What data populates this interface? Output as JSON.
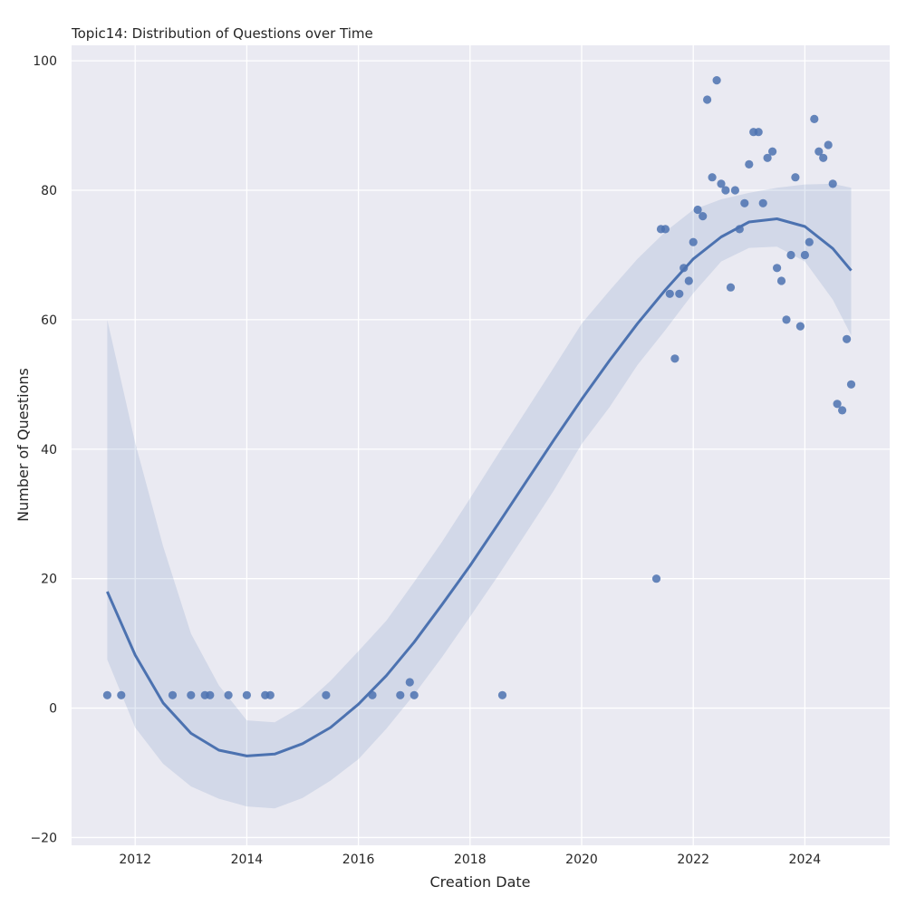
{
  "chart_data": {
    "type": "scatter",
    "title": "Topic14: Distribution of Questions over Time",
    "xlabel": "Creation Date",
    "ylabel": "Number of Questions",
    "xlim": [
      2010.86,
      2025.52
    ],
    "ylim": [
      -21.2,
      102.4
    ],
    "xticks": [
      2012,
      2014,
      2016,
      2018,
      2020,
      2022,
      2024
    ],
    "yticks": [
      -20,
      0,
      20,
      40,
      60,
      80,
      100
    ],
    "grid": true,
    "background": "#eaeaf2",
    "grid_color": "#ffffff",
    "point_color": "#4c72b0",
    "line_color": "#4c72b0",
    "band_color": "#4c72b0",
    "series": [
      {
        "kind": "points",
        "x": [
          2011.5,
          2011.75,
          2012.67,
          2013.0,
          2013.25,
          2013.34,
          2013.67,
          2014.0,
          2014.33,
          2014.42,
          2015.42,
          2016.25,
          2016.75,
          2016.92,
          2017.0,
          2018.58,
          2021.34,
          2021.42,
          2021.5,
          2021.58,
          2021.67,
          2021.75,
          2021.83,
          2021.92,
          2022.0,
          2022.08,
          2022.17,
          2022.25,
          2022.34,
          2022.42,
          2022.5,
          2022.58,
          2022.67,
          2022.75,
          2022.83,
          2022.92,
          2023.0,
          2023.08,
          2023.17,
          2023.25,
          2023.33,
          2023.42,
          2023.5,
          2023.58,
          2023.67,
          2023.75,
          2023.83,
          2023.92,
          2024.0,
          2024.08,
          2024.17,
          2024.25,
          2024.33,
          2024.42,
          2024.5,
          2024.58,
          2024.67,
          2024.75,
          2024.83
        ],
        "y": [
          2,
          2,
          2,
          2,
          2,
          2,
          2,
          2,
          2,
          2,
          2,
          2,
          2,
          4,
          2,
          2,
          20,
          74,
          74,
          64,
          54,
          64,
          68,
          66,
          72,
          77,
          76,
          94,
          82,
          97,
          81,
          80,
          65,
          80,
          74,
          78,
          84,
          89,
          89,
          78,
          85,
          86,
          68,
          66,
          60,
          70,
          82,
          59,
          70,
          72,
          91,
          86,
          85,
          87,
          81,
          47,
          46,
          57,
          50
        ]
      },
      {
        "kind": "fit",
        "x": [
          2011.5,
          2012,
          2012.5,
          2013,
          2013.5,
          2014,
          2014.5,
          2015,
          2015.5,
          2016,
          2016.5,
          2017,
          2017.5,
          2018,
          2018.5,
          2019,
          2019.5,
          2020,
          2020.5,
          2021,
          2021.5,
          2022,
          2022.5,
          2023,
          2023.5,
          2024,
          2024.5,
          2024.83
        ],
        "y": [
          18,
          8.2,
          0.8,
          -3.9,
          -6.5,
          -7.4,
          -7.1,
          -5.5,
          -3.0,
          0.6,
          5.0,
          10.2,
          16.0,
          22.0,
          28.4,
          34.9,
          41.4,
          47.7,
          53.7,
          59.4,
          64.6,
          69.4,
          72.8,
          75.1,
          75.6,
          74.4,
          71.0,
          67.6
        ]
      },
      {
        "kind": "band",
        "x": [
          2011.5,
          2012,
          2012.5,
          2013,
          2013.5,
          2014,
          2014.5,
          2015,
          2015.5,
          2016,
          2016.5,
          2017,
          2017.5,
          2018,
          2018.5,
          2019,
          2019.5,
          2020,
          2020.5,
          2021,
          2021.5,
          2022,
          2022.5,
          2023,
          2023.5,
          2024,
          2024.5,
          2024.83
        ],
        "upper": [
          60,
          41,
          25,
          11.5,
          3.5,
          -1.9,
          -2.2,
          0.3,
          4.2,
          8.8,
          13.5,
          19.5,
          25.7,
          32.4,
          39.2,
          45.9,
          52.6,
          59.4,
          64.5,
          69.4,
          73.6,
          77.0,
          78.6,
          79.6,
          80.4,
          80.9,
          81.0,
          80.4
        ],
        "lower": [
          7.5,
          -3,
          -8.6,
          -12.1,
          -14.0,
          -15.2,
          -15.5,
          -13.9,
          -11.2,
          -7.9,
          -3.2,
          2.1,
          7.9,
          14.1,
          20.4,
          27.0,
          33.6,
          40.8,
          46.5,
          53.0,
          58.4,
          64.1,
          69.0,
          71.1,
          71.3,
          69.0,
          63.1,
          57.6
        ]
      }
    ]
  }
}
